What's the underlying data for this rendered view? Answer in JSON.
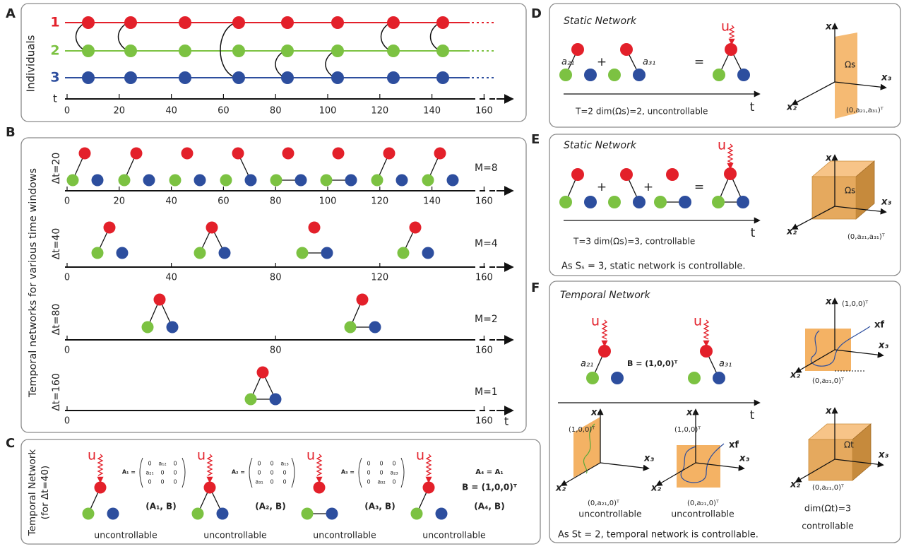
{
  "panels": {
    "A": {
      "label": "A",
      "ylabel": "Individuals",
      "rows": [
        "1",
        "2",
        "3"
      ],
      "axis": "t",
      "ticks": [
        0,
        20,
        40,
        60,
        80,
        100,
        120,
        140,
        160
      ]
    },
    "B": {
      "label": "B",
      "ylabel": "Temporal networks for various time windows",
      "axis": "t",
      "rows": [
        {
          "window": "Δt=20",
          "m": "M=8",
          "ticks": [
            0,
            20,
            40,
            60,
            80,
            100,
            120,
            140,
            160
          ]
        },
        {
          "window": "Δt=40",
          "m": "M=4",
          "ticks": [
            0,
            40,
            80,
            120,
            160
          ]
        },
        {
          "window": "Δt=80",
          "m": "M=2",
          "ticks": [
            0,
            80,
            160
          ]
        },
        {
          "window": "Δt=160",
          "m": "M=1",
          "ticks": [
            0,
            160
          ]
        }
      ]
    },
    "C": {
      "label": "C",
      "ylabel": "Temporal Network",
      "sublabel": "(for Δt=40)",
      "input": "u",
      "items": [
        {
          "matrix_name": "A₁ =",
          "matrix": [
            [
              0,
              "a₁₂",
              0
            ],
            [
              "a₂₁",
              0,
              0
            ],
            [
              0,
              0,
              0
            ]
          ],
          "pair": "(A₁, B)",
          "status": "uncontrollable"
        },
        {
          "matrix_name": "A₂ =",
          "matrix": [
            [
              0,
              0,
              "a₁₃"
            ],
            [
              0,
              0,
              0
            ],
            [
              "a₃₁",
              0,
              0
            ]
          ],
          "pair": "(A₂, B)",
          "status": "uncontrollable"
        },
        {
          "matrix_name": "A₃ =",
          "matrix": [
            [
              0,
              0,
              0
            ],
            [
              0,
              0,
              "a₂₃"
            ],
            [
              0,
              "a₃₂",
              0
            ]
          ],
          "pair": "(A₃, B)",
          "status": "uncontrollable"
        },
        {
          "equation": "A₄ = A₁",
          "input_vector": "B = (1,0,0)ᵀ",
          "pair": "(A₄, B)",
          "status": "uncontrollable"
        }
      ]
    },
    "D": {
      "label": "D",
      "title": "Static Network",
      "input": "u",
      "weights": [
        "a₂₁",
        "a₃₁"
      ],
      "operators": [
        "+",
        "="
      ],
      "axis": "t",
      "caption": "T=2   dim(Ωs)=2,  uncontrollable",
      "space": {
        "axes": [
          "x₁",
          "x₂",
          "x₃"
        ],
        "region": "Ωs",
        "point": "(0,a₂₁,a₃₁)ᵀ"
      }
    },
    "E": {
      "label": "E",
      "title": "Static Network",
      "input": "u",
      "operators": [
        "+",
        "+",
        "="
      ],
      "axis": "t",
      "caption": "T=3   dim(Ωs)=3,  controllable",
      "space": {
        "axes": [
          "x₁",
          "x₂",
          "x₃"
        ],
        "region": "Ωs",
        "point": "(0,a₂₁,a₃₁)ᵀ"
      },
      "footer": "As Sₛ = 3, static network is controllable."
    },
    "F": {
      "label": "F",
      "title": "Temporal Network",
      "inputs": [
        "u",
        "u"
      ],
      "weights": [
        "a₂₁",
        "a₃₁"
      ],
      "input_vector": "B = (1,0,0)ᵀ",
      "axis": "t",
      "spaces": [
        {
          "axes": [
            "x₁",
            "x₂",
            "x₃"
          ],
          "start": "(1,0,0)ᵀ",
          "point": "(0,a₂₁,0)ᵀ",
          "status": "uncontrollable"
        },
        {
          "axes": [
            "x₁",
            "x₂",
            "x₃"
          ],
          "start": "(1,0,0)ᵀ",
          "target": "xf",
          "point": "(0,a₂₁,0)ᵀ",
          "status": "uncontrollable"
        },
        {
          "axes": [
            "x₁",
            "x₂",
            "x₃"
          ],
          "start": "(1,0,0)ᵀ",
          "target": "xf",
          "point": "(0,a₂₁,0)ᵀ"
        },
        {
          "axes": [
            "x₁",
            "x₂",
            "x₃"
          ],
          "region": "Ωt",
          "point": "(0,a₂₁,0)ᵀ",
          "dimension": "dim(Ωt)=3",
          "status": "controllable"
        }
      ],
      "footer": "As St = 2, temporal network is controllable."
    }
  }
}
